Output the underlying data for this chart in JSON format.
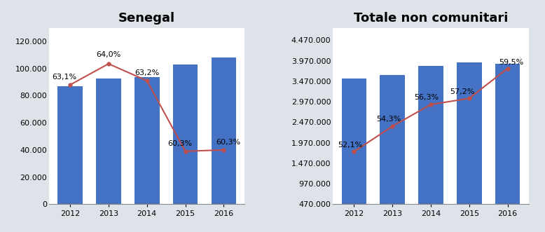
{
  "senegal": {
    "title": "Senegal",
    "years": [
      2012,
      2013,
      2014,
      2015,
      2016
    ],
    "bars": [
      87000,
      92500,
      93500,
      103000,
      108000
    ],
    "line": [
      88000,
      103500,
      91000,
      39000,
      40000
    ],
    "labels": [
      "63,1%",
      "64,0%",
      "63,2%",
      "60,3%",
      "60,3%"
    ],
    "label_dx": [
      -0.15,
      0.0,
      0.0,
      -0.15,
      0.12
    ],
    "label_dy": [
      3000,
      4000,
      3000,
      3000,
      3000
    ],
    "ylim": [
      0,
      130000
    ],
    "yticks": [
      0,
      20000,
      40000,
      60000,
      80000,
      100000,
      120000
    ]
  },
  "totale": {
    "title": "Totale non comunitari",
    "years": [
      2012,
      2013,
      2014,
      2015,
      2016
    ],
    "bars": [
      3530000,
      3620000,
      3840000,
      3930000,
      3900000
    ],
    "line": [
      1750000,
      2370000,
      2900000,
      3050000,
      3780000
    ],
    "labels": [
      "52,1%",
      "54,3%",
      "56,3%",
      "57,2%",
      "59,5%"
    ],
    "label_dx": [
      -0.1,
      -0.1,
      -0.12,
      -0.18,
      0.1
    ],
    "label_dy": [
      80000,
      80000,
      80000,
      80000,
      60000
    ],
    "ylim": [
      470000,
      4770000
    ],
    "yticks": [
      470000,
      970000,
      1470000,
      1970000,
      2470000,
      2970000,
      3470000,
      3970000,
      4470000
    ]
  },
  "bar_color": "#4472C4",
  "line_color": "#C0504D",
  "bg_color": "#DEE3EA",
  "plot_bg": "#FFFFFF",
  "title_fontsize": 13,
  "tick_fontsize": 8,
  "label_fontsize": 8
}
